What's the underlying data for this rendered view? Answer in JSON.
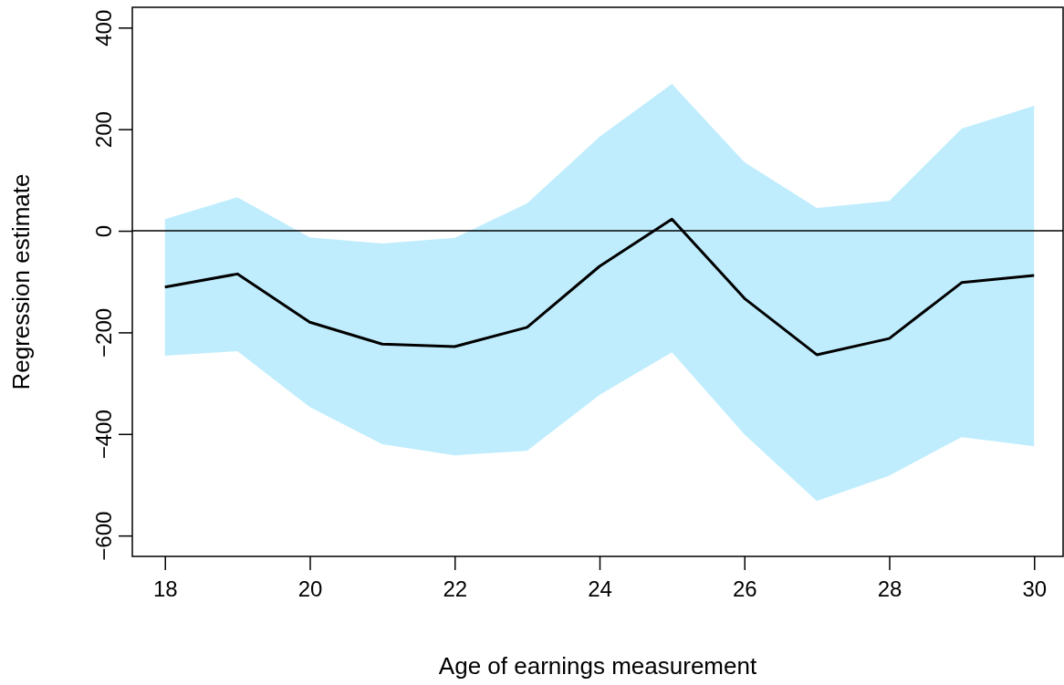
{
  "chart_data": {
    "type": "line",
    "xlabel": "Age of earnings measurement",
    "ylabel": "Regression estimate",
    "x": [
      18,
      19,
      20,
      21,
      22,
      23,
      24,
      25,
      26,
      27,
      28,
      29,
      30
    ],
    "series": [
      {
        "color": "#000000",
        "values": [
          -111,
          -85,
          -180,
          -223,
          -228,
          -190,
          -70,
          23,
          -133,
          -244,
          -212,
          -102,
          -88
        ],
        "lower": [
          -246,
          -237,
          -347,
          -420,
          -442,
          -433,
          -323,
          -239,
          -401,
          -532,
          -482,
          -406,
          -424
        ],
        "upper": [
          23,
          66,
          -13,
          -25,
          -14,
          54,
          185,
          289,
          135,
          45,
          59,
          201,
          246
        ]
      }
    ],
    "xlim": [
      17.55,
      30.4
    ],
    "xticks": [
      18,
      20,
      22,
      24,
      26,
      28,
      30
    ],
    "ylim": [
      -641,
      440
    ],
    "yticks": [
      -600,
      -400,
      -200,
      0,
      200,
      400
    ],
    "ref_lines": [
      {
        "axis": "y",
        "value": 0,
        "color": "#000000"
      }
    ],
    "grid": false,
    "marker": "none",
    "line_style": "solid"
  }
}
